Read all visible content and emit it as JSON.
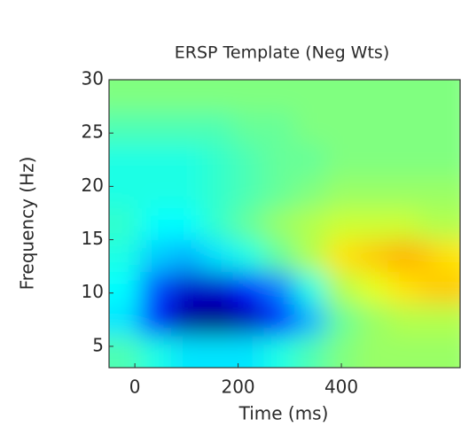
{
  "chart_data": {
    "type": "heatmap",
    "title": "ERSP Template (Neg Wts)",
    "x_label": "Time (ms)",
    "y_label": "Frequency (Hz)",
    "x": [
      -20,
      40,
      100,
      160,
      220,
      280,
      340,
      400,
      460,
      520,
      580,
      600
    ],
    "y": [
      4.5,
      7.5,
      10.5,
      13.5,
      16.5,
      19.5,
      22.5,
      25.5,
      28.5
    ],
    "z": [
      [
        -0.1,
        -0.2,
        -0.3,
        -0.3,
        -0.3,
        -0.2,
        -0.1,
        0,
        0.05,
        0.05,
        0.05,
        0.05
      ],
      [
        -0.3,
        -0.7,
        -0.95,
        -1,
        -0.9,
        -0.7,
        -0.4,
        -0.05,
        0.05,
        0.1,
        0.1,
        0.1
      ],
      [
        -0.25,
        -0.6,
        -0.85,
        -0.85,
        -0.7,
        -0.5,
        -0.2,
        0.1,
        0.2,
        0.3,
        0.35,
        0.35
      ],
      [
        -0.2,
        -0.35,
        -0.4,
        -0.3,
        -0.2,
        -0.05,
        0.1,
        0.3,
        0.35,
        0.4,
        0.35,
        0.3
      ],
      [
        -0.15,
        -0.25,
        -0.25,
        -0.15,
        -0.05,
        0.05,
        0.1,
        0.15,
        0.15,
        0.15,
        0.1,
        0.1
      ],
      [
        -0.2,
        -0.2,
        -0.2,
        -0.15,
        -0.1,
        -0.05,
        0,
        0.05,
        0.05,
        0.05,
        0.05,
        0.05
      ],
      [
        -0.2,
        -0.2,
        -0.2,
        -0.15,
        -0.1,
        -0.05,
        -0.05,
        0,
        0,
        0,
        0,
        0
      ],
      [
        -0.1,
        -0.1,
        -0.1,
        -0.1,
        -0.05,
        -0.05,
        0,
        0,
        0,
        0,
        0,
        0
      ],
      [
        0,
        0,
        0,
        0,
        0,
        0,
        0,
        0,
        0,
        0,
        0,
        0
      ]
    ],
    "colormap": "jet",
    "zlim": [
      -1,
      1
    ],
    "xlim": [
      -50,
      630
    ],
    "ylim": [
      3,
      30
    ],
    "xticks": [
      0,
      200,
      400
    ],
    "yticks": [
      5,
      10,
      15,
      20,
      25,
      30
    ]
  }
}
